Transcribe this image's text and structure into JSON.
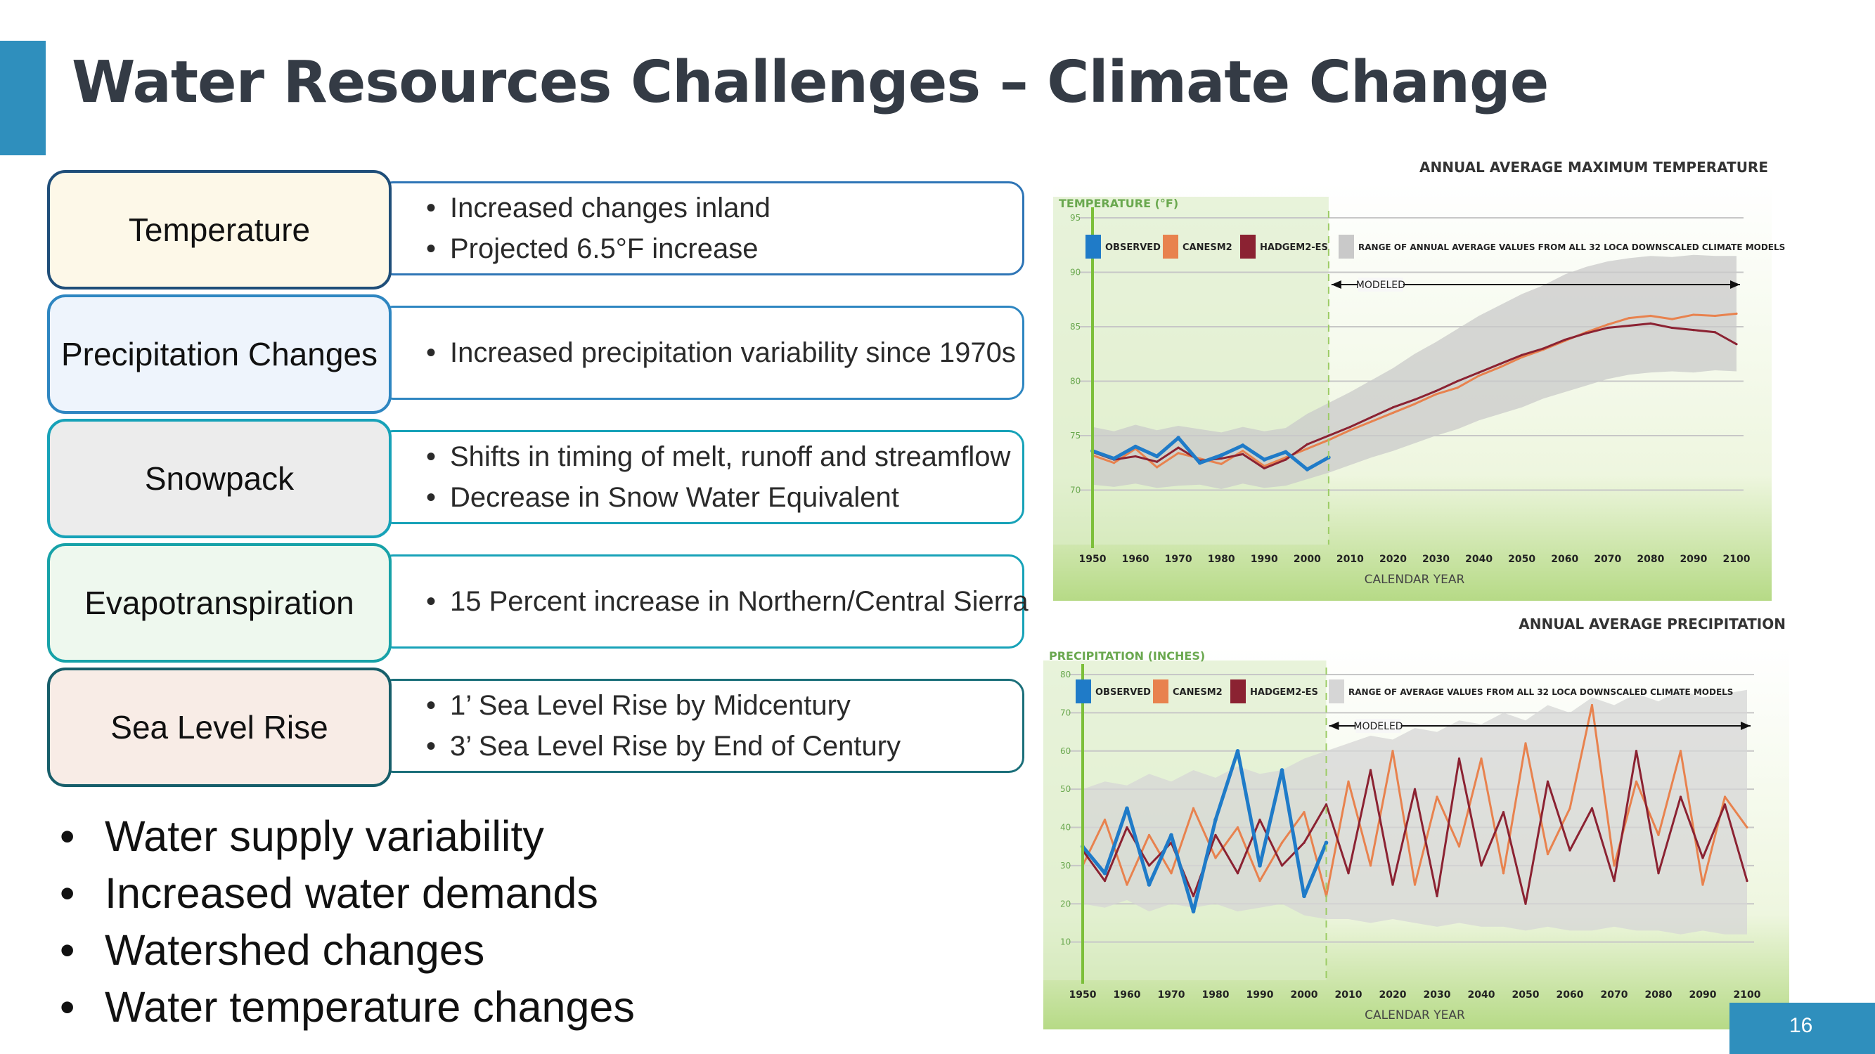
{
  "title": "Water Resources Challenges – Climate Change",
  "page_number": "16",
  "accent_color": "#2f8fbd",
  "rows": [
    {
      "label": "Temperature",
      "bullets": [
        "Increased changes inland",
        "Projected 6.5°F increase"
      ],
      "border": "#1f4e79",
      "fill": "#fdf8e8",
      "bullet_border": "#2e75b6"
    },
    {
      "label": "Precipitation Changes",
      "bullets": [
        "Increased precipitation variability since 1970s"
      ],
      "border": "#2e86c1",
      "fill": "#eef4fc",
      "bullet_border": "#2e86c1"
    },
    {
      "label": "Snowpack",
      "bullets": [
        "Shifts in timing of melt, runoff and streamflow",
        "Decrease in Snow Water Equivalent"
      ],
      "border": "#17a2b8",
      "fill": "#ececec",
      "bullet_border": "#17a2b8"
    },
    {
      "label": "Evapotranspiration",
      "bullets": [
        "15 Percent increase in Northern/Central Sierra"
      ],
      "border": "#17a2a8",
      "fill": "#eef8ee",
      "bullet_border": "#17a2b8"
    },
    {
      "label": "Sea Level Rise",
      "bullets": [
        "1’ Sea Level Rise by Midcentury",
        "3’ Sea Level Rise by End of Century"
      ],
      "border": "#175e6a",
      "fill": "#f8ece6",
      "bullet_border": "#1b6f7a"
    }
  ],
  "bottom_bullets": [
    "Water supply variability",
    "Increased water demands",
    "Watershed changes",
    "Water temperature changes"
  ],
  "chart_data": [
    {
      "type": "line",
      "title": "Annual Average Maximum Temperature",
      "ylabel": "Temperature (°F)",
      "xlabel": "Calendar Year",
      "ylim": [
        65,
        95
      ],
      "xlim": [
        1950,
        2100
      ],
      "yticks": [
        70,
        75,
        80,
        85,
        90,
        95
      ],
      "xticks": [
        1950,
        1960,
        1970,
        1980,
        1990,
        2000,
        2010,
        2020,
        2030,
        2040,
        2050,
        2060,
        2070,
        2080,
        2090,
        2100
      ],
      "legend": [
        "Observed",
        "CanESM2",
        "HadGEM2-ES",
        "Range of Annual Average Values from all 32 LOCA downscaled Climate Models"
      ],
      "legend_position": "top",
      "annotation": "Modeled",
      "modeled_start": 2005,
      "series_colors": {
        "observed": "#1f7bc8",
        "canesm2": "#e8824e",
        "hadgem2": "#8b2232",
        "range": "#c9c9c9"
      },
      "x_step": 5,
      "series": [
        {
          "name": "Observed",
          "x_start": 1950,
          "values": [
            73.6,
            72.9,
            74.0,
            73.1,
            74.8,
            72.5,
            73.2,
            74.1,
            72.8,
            73.5,
            71.9,
            73.0
          ]
        },
        {
          "name": "CanESM2",
          "x_start": 1950,
          "values": [
            73.2,
            72.5,
            73.8,
            72.1,
            73.4,
            72.9,
            72.4,
            73.6,
            72.2,
            73.0,
            73.8,
            74.6,
            75.5,
            76.3,
            77.1,
            77.9,
            78.8,
            79.4,
            80.5,
            81.3,
            82.2,
            82.9,
            83.7,
            84.5,
            85.2,
            85.8,
            86.0,
            85.7,
            86.1,
            86.0,
            86.2
          ]
        },
        {
          "name": "HadGEM2-ES",
          "x_start": 1950,
          "values": [
            73.5,
            72.8,
            73.1,
            72.6,
            73.9,
            72.7,
            72.9,
            73.3,
            72.0,
            72.8,
            74.2,
            75.0,
            75.8,
            76.7,
            77.6,
            78.3,
            79.1,
            80.0,
            80.8,
            81.6,
            82.4,
            83.0,
            83.8,
            84.4,
            84.9,
            85.1,
            85.3,
            84.9,
            84.7,
            84.5,
            83.4
          ]
        },
        {
          "name": "Range",
          "x_start": 1950,
          "lower": [
            70.5,
            70.3,
            70.6,
            70.2,
            70.4,
            70.5,
            70.1,
            70.6,
            70.2,
            70.4,
            71.0,
            71.6,
            72.3,
            73.0,
            73.6,
            74.3,
            75.0,
            75.6,
            76.4,
            77.0,
            77.6,
            78.4,
            79.0,
            79.6,
            80.2,
            80.6,
            80.8,
            80.9,
            80.8,
            81.0,
            80.9
          ],
          "upper": [
            75.8,
            75.4,
            76.0,
            75.5,
            75.9,
            75.6,
            75.3,
            75.8,
            75.4,
            75.7,
            77.0,
            78.0,
            79.0,
            80.1,
            81.2,
            82.5,
            83.6,
            84.8,
            86.0,
            87.0,
            88.0,
            88.8,
            89.8,
            90.5,
            91.0,
            91.3,
            91.5,
            91.4,
            91.6,
            91.5,
            91.5
          ]
        }
      ]
    },
    {
      "type": "line",
      "title": "Annual Average Precipitation",
      "ylabel": "Precipitation (inches)",
      "xlabel": "Calendar Year",
      "ylim": [
        0,
        80
      ],
      "xlim": [
        1950,
        2100
      ],
      "yticks": [
        10,
        20,
        30,
        40,
        50,
        60,
        70,
        80
      ],
      "xticks": [
        1950,
        1960,
        1970,
        1980,
        1990,
        2000,
        2010,
        2020,
        2030,
        2040,
        2050,
        2060,
        2070,
        2080,
        2090,
        2100
      ],
      "legend": [
        "Observed",
        "CanESM2",
        "HadGEM2-ES",
        "Range of Average Values from all 32 LOCA downscaled Climate Models"
      ],
      "legend_position": "top",
      "annotation": "Modeled",
      "modeled_start": 2005,
      "series_colors": {
        "observed": "#1f7bc8",
        "canesm2": "#e8824e",
        "hadgem2": "#8b2232",
        "range": "#d6d6d6"
      },
      "x_step": 5,
      "series": [
        {
          "name": "Observed",
          "x_start": 1950,
          "values": [
            35,
            28,
            45,
            25,
            38,
            18,
            42,
            60,
            30,
            55,
            22,
            36
          ]
        },
        {
          "name": "CanESM2",
          "x_start": 1950,
          "values": [
            30,
            42,
            25,
            38,
            28,
            45,
            32,
            40,
            26,
            36,
            44,
            22,
            52,
            30,
            60,
            25,
            48,
            35,
            58,
            28,
            62,
            33,
            45,
            72,
            30,
            52,
            38,
            60,
            25,
            48,
            40
          ]
        },
        {
          "name": "HadGEM2-ES",
          "x_start": 1950,
          "values": [
            34,
            26,
            40,
            30,
            36,
            22,
            38,
            28,
            42,
            30,
            36,
            46,
            28,
            55,
            25,
            50,
            22,
            58,
            30,
            44,
            20,
            52,
            34,
            45,
            26,
            60,
            28,
            48,
            32,
            46,
            26
          ]
        },
        {
          "name": "Range",
          "x_start": 1950,
          "lower": [
            20,
            19,
            21,
            18,
            20,
            19,
            20,
            18,
            19,
            20,
            17,
            16,
            16,
            15,
            16,
            15,
            14,
            15,
            14,
            14,
            13,
            14,
            13,
            13,
            14,
            13,
            13,
            12,
            13,
            12,
            12
          ],
          "upper": [
            50,
            52,
            51,
            54,
            52,
            55,
            53,
            56,
            54,
            55,
            58,
            60,
            62,
            64,
            63,
            66,
            65,
            68,
            67,
            70,
            68,
            72,
            70,
            74,
            72,
            75,
            73,
            76,
            74,
            75,
            76
          ]
        }
      ]
    }
  ]
}
